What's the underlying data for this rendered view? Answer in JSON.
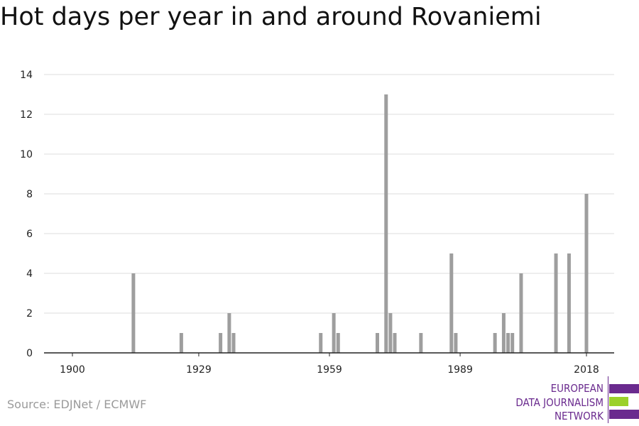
{
  "title": "Hot days per year in and around Rovaniemi",
  "source": "Source: EDJNet / ECMWF",
  "logo": {
    "lines": [
      "EUROPEAN",
      "DATA JOURNALISM",
      "NETWORK"
    ],
    "colors": {
      "purple": "#6a2a8e",
      "green": "#9bd12a"
    }
  },
  "colors": {
    "bar": "#9e9e9e",
    "grid": "#dddddd",
    "axis": "#222222"
  },
  "chart_data": {
    "type": "bar",
    "title": "Hot days per year in and around Rovaniemi",
    "xlabel": "",
    "ylabel": "",
    "xlim": [
      1900,
      2018
    ],
    "ylim": [
      0,
      14
    ],
    "grid": true,
    "x_ticks": [
      1900,
      1929,
      1959,
      1989,
      2018
    ],
    "y_ticks": [
      0,
      2,
      4,
      6,
      8,
      10,
      12,
      14
    ],
    "x": [
      1914,
      1925,
      1934,
      1936,
      1937,
      1957,
      1960,
      1961,
      1970,
      1972,
      1973,
      1974,
      1980,
      1987,
      1988,
      1997,
      1999,
      2000,
      2001,
      2003,
      2011,
      2014,
      2018
    ],
    "values": [
      4,
      1,
      1,
      2,
      1,
      1,
      2,
      1,
      1,
      13,
      2,
      1,
      1,
      5,
      1,
      1,
      2,
      1,
      1,
      4,
      5,
      5,
      8
    ]
  }
}
